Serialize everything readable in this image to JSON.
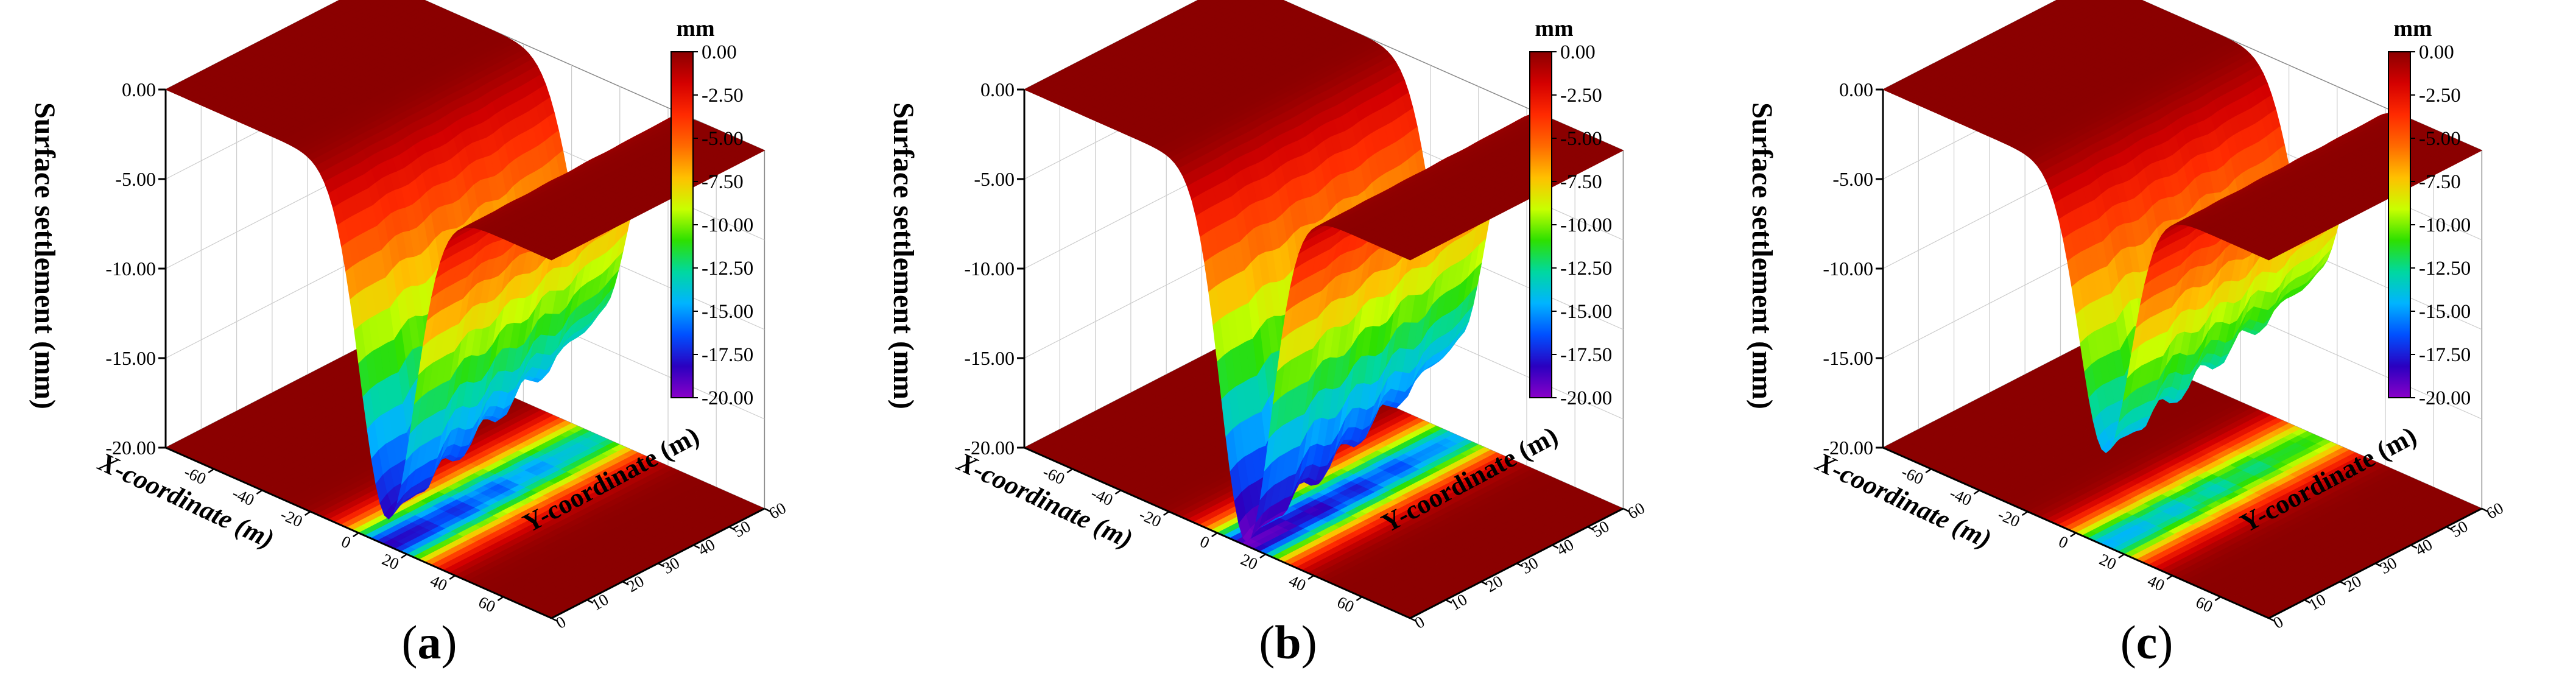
{
  "chart_data": [
    {
      "type": "surface",
      "panel_label": "a",
      "zlabel": "Surface settlement (mm)",
      "xlabel": "X-coordinate (m)",
      "ylabel": "Y-coordinate (m)",
      "colorbar_unit": "mm",
      "xlim": [
        -80,
        80
      ],
      "ylim": [
        0,
        60
      ],
      "zlim": [
        -20,
        0
      ],
      "x_ticks": [
        -60,
        -40,
        -20,
        0,
        20,
        40,
        60
      ],
      "y_ticks": [
        0,
        10,
        20,
        30,
        40,
        50,
        60
      ],
      "z_ticks": [
        "-20.00",
        "-15.00",
        "-10.00",
        "-5.00",
        "0.00"
      ],
      "colorbar_ticks": [
        "0.00",
        "-2.50",
        "-5.00",
        "-7.50",
        "-10.00",
        "-12.50",
        "-15.00",
        "-17.50",
        "-20.00"
      ],
      "trough_center_x": 12,
      "trough_width_x": 16,
      "max_settlement_start": -18.5,
      "max_settlement_end": -13.0
    },
    {
      "type": "surface",
      "panel_label": "b",
      "zlabel": "Surface settlement (mm)",
      "xlabel": "X-coordinate (m)",
      "ylabel": "Y-coordinate (m)",
      "colorbar_unit": "mm",
      "xlim": [
        -80,
        80
      ],
      "ylim": [
        0,
        60
      ],
      "zlim": [
        -20,
        0
      ],
      "x_ticks": [
        -60,
        -40,
        -20,
        0,
        20,
        40,
        60
      ],
      "y_ticks": [
        0,
        10,
        20,
        30,
        40,
        50,
        60
      ],
      "z_ticks": [
        "-20.00",
        "-15.00",
        "-10.00",
        "-5.00",
        "0.00"
      ],
      "colorbar_ticks": [
        "0.00",
        "-2.50",
        "-5.00",
        "-7.50",
        "-10.00",
        "-12.50",
        "-15.00",
        "-17.50",
        "-20.00"
      ],
      "trough_center_x": 12,
      "trough_width_x": 15,
      "max_settlement_start": -19.8,
      "max_settlement_end": -14.5
    },
    {
      "type": "surface",
      "panel_label": "c",
      "zlabel": "Surface settlement (mm)",
      "xlabel": "X-coordinate (m)",
      "ylabel": "Y-coordinate (m)",
      "colorbar_unit": "mm",
      "xlim": [
        -80,
        80
      ],
      "ylim": [
        0,
        60
      ],
      "zlim": [
        -20,
        0
      ],
      "x_ticks": [
        -60,
        -40,
        -20,
        0,
        20,
        40,
        60
      ],
      "y_ticks": [
        0,
        10,
        20,
        30,
        40,
        50,
        60
      ],
      "z_ticks": [
        "-20.00",
        "-15.00",
        "-10.00",
        "-5.00",
        "0.00"
      ],
      "colorbar_ticks": [
        "0.00",
        "-2.50",
        "-5.00",
        "-7.50",
        "-10.00",
        "-12.50",
        "-15.00",
        "-17.50",
        "-20.00"
      ],
      "trough_center_x": 12,
      "trough_width_x": 15,
      "max_settlement_start": -14.8,
      "max_settlement_end": -10.8
    }
  ],
  "colormap": [
    "#8b0000",
    "#d40000",
    "#ff2a00",
    "#ff6a00",
    "#ffc000",
    "#c8ff00",
    "#2ee000",
    "#00d8a0",
    "#00b4ff",
    "#0050ff",
    "#2a00c0",
    "#8a00c8"
  ]
}
